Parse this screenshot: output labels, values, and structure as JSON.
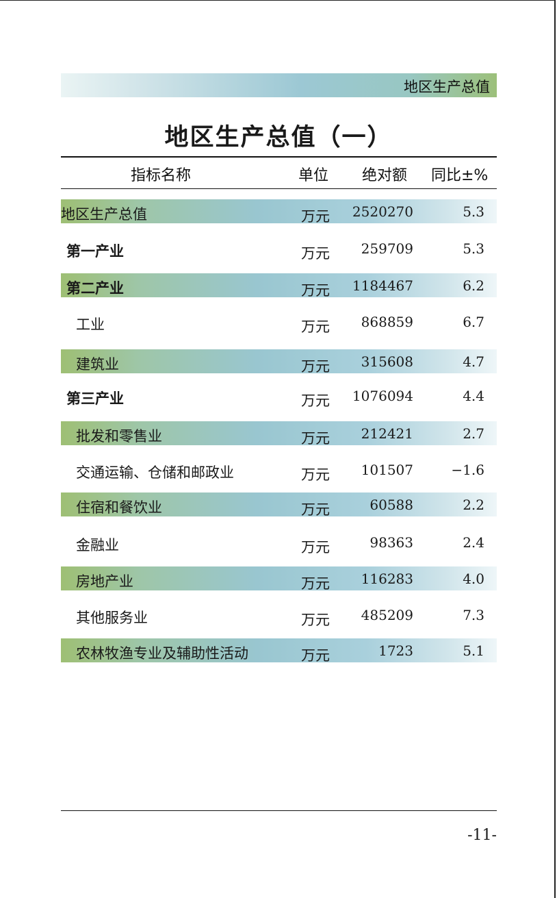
{
  "header": {
    "section_label": "地区生产总值"
  },
  "title": "地区生产总值（一）",
  "columns": {
    "name": "指标名称",
    "unit": "单位",
    "absolute": "绝对额",
    "yoy": "同比±%"
  },
  "rows": [
    {
      "name": "地区生产总值",
      "unit": "万元",
      "value": "2520270",
      "yoy": "5.3"
    },
    {
      "name": "第一产业",
      "unit": "万元",
      "value": "259709",
      "yoy": "5.3"
    },
    {
      "name": "第二产业",
      "unit": "万元",
      "value": "1184467",
      "yoy": "6.2"
    },
    {
      "name": "工业",
      "unit": "万元",
      "value": "868859",
      "yoy": "6.7"
    },
    {
      "name": "建筑业",
      "unit": "万元",
      "value": "315608",
      "yoy": "4.7"
    },
    {
      "name": "第三产业",
      "unit": "万元",
      "value": "1076094",
      "yoy": "4.4"
    },
    {
      "name": "批发和零售业",
      "unit": "万元",
      "value": "212421",
      "yoy": "2.7"
    },
    {
      "name": "交通运输、仓储和邮政业",
      "unit": "万元",
      "value": "101507",
      "yoy": "−1.6"
    },
    {
      "name": "住宿和餐饮业",
      "unit": "万元",
      "value": "60588",
      "yoy": "2.2"
    },
    {
      "name": "金融业",
      "unit": "万元",
      "value": "98363",
      "yoy": "2.4"
    },
    {
      "name": "房地产业",
      "unit": "万元",
      "value": "116283",
      "yoy": "4.0"
    },
    {
      "name": "其他服务业",
      "unit": "万元",
      "value": "485209",
      "yoy": "7.3"
    },
    {
      "name": "农林牧渔专业及辅助性活动",
      "unit": "万元",
      "value": "1723",
      "yoy": "5.1"
    }
  ],
  "footer": {
    "page_number": "-11-"
  }
}
